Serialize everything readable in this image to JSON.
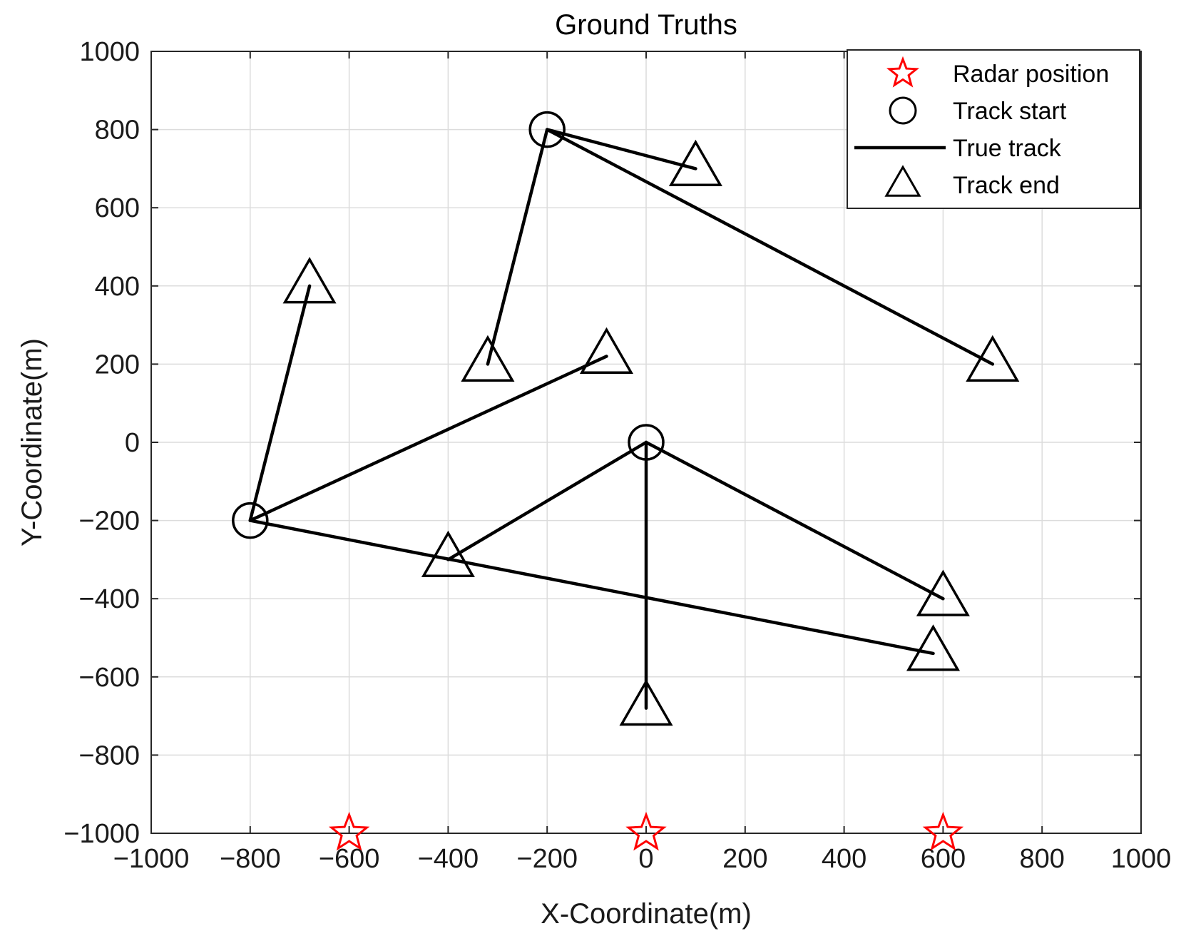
{
  "chart_data": {
    "type": "scatter",
    "title": "Ground Truths",
    "xlabel": "X-Coordinate(m)",
    "ylabel": "Y-Coordinate(m)",
    "xlim": [
      -1000,
      1000
    ],
    "ylim": [
      -1000,
      1000
    ],
    "xticks": [
      -1000,
      -800,
      -600,
      -400,
      -200,
      0,
      200,
      400,
      600,
      800,
      1000
    ],
    "yticks": [
      -1000,
      -800,
      -600,
      -400,
      -200,
      0,
      200,
      400,
      600,
      800,
      1000
    ],
    "xtick_labels": [
      "−1000",
      "−800",
      "−600",
      "−400",
      "−200",
      "0",
      "200",
      "400",
      "600",
      "800",
      "1000"
    ],
    "ytick_labels": [
      "−1000",
      "−800",
      "−600",
      "−400",
      "−200",
      "0",
      "200",
      "400",
      "600",
      "800",
      "1000"
    ],
    "grid": true,
    "legend_position": "top-right",
    "legend": [
      {
        "label": "Radar position",
        "marker": "star",
        "color": "#ff0000"
      },
      {
        "label": "Track start",
        "marker": "circle",
        "color": "#000000"
      },
      {
        "label": "True track",
        "marker": "line",
        "color": "#000000"
      },
      {
        "label": "Track end",
        "marker": "triangle",
        "color": "#000000"
      }
    ],
    "radar_positions": [
      {
        "x": -600,
        "y": -1000
      },
      {
        "x": 0,
        "y": -1000
      },
      {
        "x": 600,
        "y": -1000
      }
    ],
    "track_starts": [
      {
        "x": -200,
        "y": 800
      },
      {
        "x": 0,
        "y": 0
      },
      {
        "x": -800,
        "y": -200
      }
    ],
    "tracks": [
      {
        "start": [
          -200,
          800
        ],
        "end": [
          100,
          700
        ]
      },
      {
        "start": [
          -200,
          800
        ],
        "end": [
          700,
          200
        ]
      },
      {
        "start": [
          -200,
          800
        ],
        "end": [
          -320,
          200
        ]
      },
      {
        "start": [
          0,
          0
        ],
        "end": [
          600,
          -400
        ]
      },
      {
        "start": [
          0,
          0
        ],
        "end": [
          -400,
          -300
        ]
      },
      {
        "start": [
          0,
          0
        ],
        "end": [
          0,
          -680
        ]
      },
      {
        "start": [
          -800,
          -200
        ],
        "end": [
          -680,
          400
        ]
      },
      {
        "start": [
          -800,
          -200
        ],
        "end": [
          -80,
          220
        ]
      },
      {
        "start": [
          -800,
          -200
        ],
        "end": [
          580,
          -540
        ]
      }
    ],
    "track_ends": [
      {
        "x": 100,
        "y": 700
      },
      {
        "x": 700,
        "y": 200
      },
      {
        "x": -320,
        "y": 200
      },
      {
        "x": 600,
        "y": -400
      },
      {
        "x": -400,
        "y": -300
      },
      {
        "x": 0,
        "y": -680
      },
      {
        "x": -680,
        "y": 400
      },
      {
        "x": -80,
        "y": 220
      },
      {
        "x": 580,
        "y": -540
      }
    ]
  }
}
